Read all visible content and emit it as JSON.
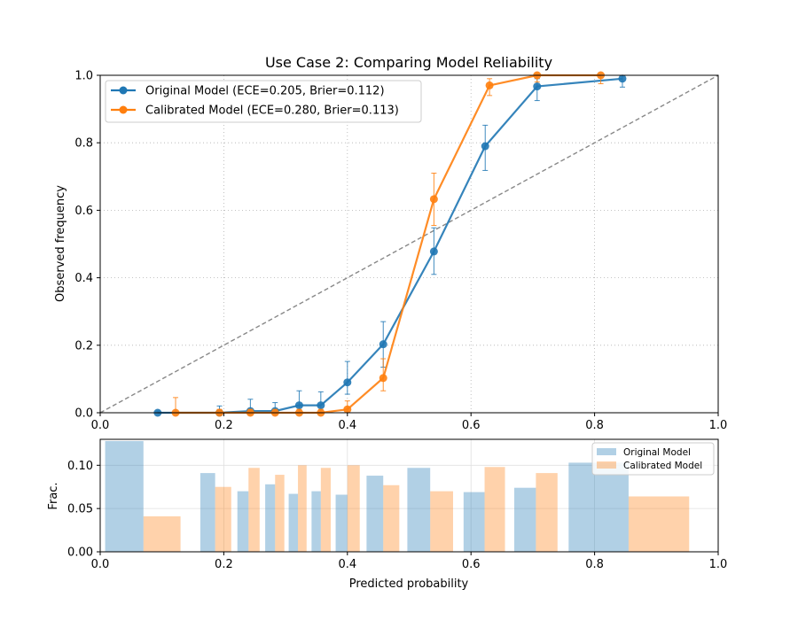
{
  "chart_data": [
    {
      "type": "line",
      "title": "Use Case 2: Comparing Model Reliability",
      "ylabel": "Observed frequency",
      "xlim": [
        0,
        1
      ],
      "ylim": [
        0,
        1
      ],
      "x_ticks": [
        "0.0",
        "0.2",
        "0.4",
        "0.6",
        "0.8",
        "1.0"
      ],
      "y_ticks": [
        "0.0",
        "0.2",
        "0.4",
        "0.6",
        "0.8",
        "1.0"
      ],
      "grid": true,
      "legend_placement": "upper-left",
      "reference_line": {
        "x": [
          0,
          1
        ],
        "y": [
          0,
          1
        ],
        "style": "dashed",
        "color": "#888888"
      },
      "series": [
        {
          "name": "Original Model (ECE=0.205, Brier=0.112)",
          "color": "#1f77b4",
          "x": [
            0.093,
            0.193,
            0.243,
            0.283,
            0.322,
            0.357,
            0.4,
            0.458,
            0.54,
            0.623,
            0.707,
            0.845
          ],
          "y": [
            0.0,
            0.0,
            0.005,
            0.005,
            0.022,
            0.022,
            0.09,
            0.203,
            0.478,
            0.79,
            0.967,
            0.99
          ],
          "err_low": [
            0.0,
            0.0,
            0.0,
            0.0,
            0.0,
            0.0,
            0.055,
            0.135,
            0.41,
            0.718,
            0.925,
            0.965
          ],
          "err_high": [
            0.005,
            0.02,
            0.04,
            0.03,
            0.065,
            0.062,
            0.152,
            0.27,
            0.548,
            0.852,
            0.99,
            1.0
          ]
        },
        {
          "name": "Calibrated Model (ECE=0.280, Brier=0.113)",
          "color": "#ff7f0e",
          "x": [
            0.122,
            0.193,
            0.243,
            0.283,
            0.322,
            0.357,
            0.4,
            0.458,
            0.54,
            0.63,
            0.707,
            0.81
          ],
          "y": [
            0.0,
            0.0,
            0.0,
            0.0,
            0.0,
            0.0,
            0.01,
            0.103,
            0.633,
            0.97,
            1.0,
            1.0
          ],
          "err_low": [
            0.0,
            0.0,
            0.0,
            0.0,
            0.0,
            0.0,
            0.0,
            0.065,
            0.555,
            0.94,
            0.98,
            0.975
          ],
          "err_high": [
            0.045,
            0.01,
            0.01,
            0.01,
            0.01,
            0.01,
            0.035,
            0.16,
            0.71,
            0.99,
            1.0,
            1.0
          ]
        }
      ]
    },
    {
      "type": "bar",
      "xlabel": "Predicted probability",
      "ylabel": "Frac.",
      "xlim": [
        0,
        1
      ],
      "ylim": [
        0,
        0.13
      ],
      "x_ticks": [
        "0.0",
        "0.2",
        "0.4",
        "0.6",
        "0.8",
        "1.0"
      ],
      "y_ticks": [
        "0.00",
        "0.05",
        "0.10"
      ],
      "grid": true,
      "legend_placement": "upper-right",
      "series": [
        {
          "name": "Original Model",
          "color": "#1f77b4",
          "opacity": 0.35,
          "bins": [
            [
              0.008,
              0.07
            ],
            [
              0.162,
              0.186
            ],
            [
              0.222,
              0.24
            ],
            [
              0.267,
              0.283
            ],
            [
              0.305,
              0.32
            ],
            [
              0.342,
              0.357
            ],
            [
              0.381,
              0.4
            ],
            [
              0.431,
              0.458
            ],
            [
              0.497,
              0.534
            ],
            [
              0.588,
              0.622
            ],
            [
              0.67,
              0.705
            ],
            [
              0.758,
              0.855
            ]
          ],
          "values": [
            0.128,
            0.091,
            0.07,
            0.078,
            0.067,
            0.07,
            0.066,
            0.088,
            0.097,
            0.069,
            0.074,
            0.103
          ]
        },
        {
          "name": "Calibrated Model",
          "color": "#ff7f0e",
          "opacity": 0.35,
          "bins": [
            [
              0.07,
              0.13
            ],
            [
              0.186,
              0.212
            ],
            [
              0.24,
              0.258
            ],
            [
              0.283,
              0.298
            ],
            [
              0.32,
              0.334
            ],
            [
              0.357,
              0.373
            ],
            [
              0.4,
              0.42
            ],
            [
              0.458,
              0.484
            ],
            [
              0.534,
              0.571
            ],
            [
              0.622,
              0.655
            ],
            [
              0.705,
              0.74
            ],
            [
              0.855,
              0.953
            ]
          ],
          "values": [
            0.041,
            0.075,
            0.097,
            0.089,
            0.1,
            0.097,
            0.1,
            0.077,
            0.07,
            0.098,
            0.091,
            0.064
          ]
        }
      ]
    }
  ]
}
